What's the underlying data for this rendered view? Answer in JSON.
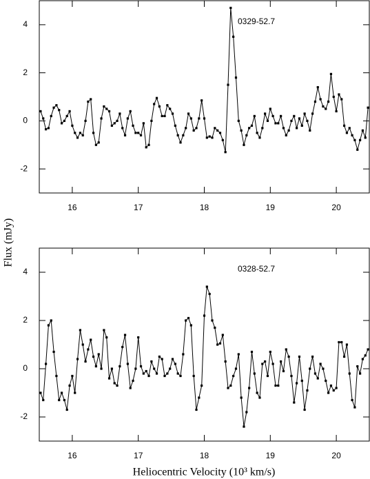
{
  "chart_data": [
    {
      "type": "line",
      "annotation": "0329-52.7",
      "ylabel": "Flux (mJy)",
      "xlim": [
        15.5,
        20.5
      ],
      "xticks": [
        16,
        17,
        18,
        19,
        20
      ],
      "ylim": [
        -3,
        5
      ],
      "yticks": [
        -2,
        0,
        2,
        4
      ],
      "color": "#000000",
      "x": [
        15.52,
        15.56,
        15.6,
        15.64,
        15.68,
        15.72,
        15.76,
        15.8,
        15.84,
        15.88,
        15.92,
        15.96,
        16,
        16.04,
        16.08,
        16.12,
        16.16,
        16.2,
        16.24,
        16.28,
        16.32,
        16.36,
        16.4,
        16.44,
        16.48,
        16.52,
        16.56,
        16.6,
        16.64,
        16.68,
        16.72,
        16.76,
        16.8,
        16.84,
        16.88,
        16.92,
        16.96,
        17,
        17.04,
        17.08,
        17.12,
        17.16,
        17.2,
        17.24,
        17.28,
        17.32,
        17.36,
        17.4,
        17.44,
        17.48,
        17.52,
        17.56,
        17.6,
        17.64,
        17.68,
        17.72,
        17.76,
        17.8,
        17.84,
        17.88,
        17.92,
        17.96,
        18,
        18.04,
        18.08,
        18.12,
        18.16,
        18.2,
        18.24,
        18.28,
        18.32,
        18.36,
        18.4,
        18.44,
        18.48,
        18.52,
        18.56,
        18.6,
        18.64,
        18.68,
        18.72,
        18.76,
        18.8,
        18.84,
        18.88,
        18.92,
        18.96,
        19,
        19.04,
        19.08,
        19.12,
        19.16,
        19.2,
        19.24,
        19.28,
        19.32,
        19.36,
        19.4,
        19.44,
        19.48,
        19.52,
        19.56,
        19.6,
        19.64,
        19.68,
        19.72,
        19.76,
        19.8,
        19.84,
        19.88,
        19.92,
        19.96,
        20,
        20.04,
        20.08,
        20.12,
        20.16,
        20.2,
        20.24,
        20.28,
        20.32,
        20.36,
        20.4,
        20.44,
        20.48
      ],
      "values": [
        0.4,
        0.1,
        -0.35,
        -0.3,
        0.2,
        0.55,
        0.65,
        0.45,
        -0.1,
        0.0,
        0.2,
        0.4,
        -0.2,
        -0.5,
        -0.7,
        -0.5,
        -0.6,
        0.0,
        0.8,
        0.9,
        -0.5,
        -1.0,
        -0.9,
        0.1,
        0.6,
        0.5,
        0.4,
        -0.2,
        -0.1,
        0.0,
        0.3,
        -0.3,
        -0.6,
        0.1,
        0.4,
        -0.2,
        -0.5,
        -0.5,
        -0.6,
        -0.1,
        -1.1,
        -1.0,
        0.0,
        0.7,
        0.95,
        0.6,
        0.2,
        0.2,
        0.65,
        0.5,
        0.3,
        -0.2,
        -0.6,
        -0.9,
        -0.6,
        -0.3,
        0.3,
        0.1,
        -0.4,
        -0.3,
        0.1,
        0.85,
        0.1,
        -0.7,
        -0.65,
        -0.7,
        -0.3,
        -0.4,
        -0.5,
        -0.8,
        -1.3,
        1.5,
        4.7,
        3.5,
        1.8,
        0.0,
        -0.4,
        -1.0,
        -0.6,
        -0.3,
        -0.2,
        0.2,
        -0.5,
        -0.7,
        -0.3,
        0.3,
        0.0,
        0.5,
        0.2,
        -0.1,
        -0.1,
        0.2,
        -0.3,
        -0.6,
        -0.4,
        0.0,
        0.2,
        -0.3,
        0.1,
        -0.2,
        0.3,
        0.0,
        -0.4,
        0.3,
        0.8,
        1.4,
        0.9,
        0.6,
        0.5,
        0.8,
        1.95,
        1.0,
        0.4,
        1.1,
        0.9,
        -0.2,
        -0.5,
        -0.3,
        -0.6,
        -0.8,
        -1.2,
        -0.8,
        -0.4,
        -0.7,
        0.55
      ]
    },
    {
      "type": "line",
      "annotation": "0328-52.7",
      "xlabel": "Heliocentric Velocity (10³ km/s)",
      "xlim": [
        15.5,
        20.5
      ],
      "xticks": [
        16,
        17,
        18,
        19,
        20
      ],
      "ylim": [
        -3,
        5
      ],
      "yticks": [
        -2,
        0,
        2,
        4
      ],
      "color": "#000000",
      "x": [
        15.52,
        15.56,
        15.6,
        15.64,
        15.68,
        15.72,
        15.76,
        15.8,
        15.84,
        15.88,
        15.92,
        15.96,
        16,
        16.04,
        16.08,
        16.12,
        16.16,
        16.2,
        16.24,
        16.28,
        16.32,
        16.36,
        16.4,
        16.44,
        16.48,
        16.52,
        16.56,
        16.6,
        16.64,
        16.68,
        16.72,
        16.76,
        16.8,
        16.84,
        16.88,
        16.92,
        16.96,
        17,
        17.04,
        17.08,
        17.12,
        17.16,
        17.2,
        17.24,
        17.28,
        17.32,
        17.36,
        17.4,
        17.44,
        17.48,
        17.52,
        17.56,
        17.6,
        17.64,
        17.68,
        17.72,
        17.76,
        17.8,
        17.84,
        17.88,
        17.92,
        17.96,
        18,
        18.04,
        18.08,
        18.12,
        18.16,
        18.2,
        18.24,
        18.28,
        18.32,
        18.36,
        18.4,
        18.44,
        18.48,
        18.52,
        18.56,
        18.6,
        18.64,
        18.68,
        18.72,
        18.76,
        18.8,
        18.84,
        18.88,
        18.92,
        18.96,
        19,
        19.04,
        19.08,
        19.12,
        19.16,
        19.2,
        19.24,
        19.28,
        19.32,
        19.36,
        19.4,
        19.44,
        19.48,
        19.52,
        19.56,
        19.6,
        19.64,
        19.68,
        19.72,
        19.76,
        19.8,
        19.84,
        19.88,
        19.92,
        19.96,
        20,
        20.04,
        20.08,
        20.12,
        20.16,
        20.2,
        20.24,
        20.28,
        20.32,
        20.36,
        20.4,
        20.44,
        20.48
      ],
      "values": [
        -1.0,
        -1.3,
        0.2,
        1.8,
        2.0,
        0.7,
        -0.3,
        -1.3,
        -1.0,
        -1.3,
        -1.7,
        -0.7,
        -0.3,
        -1.0,
        0.4,
        1.6,
        1.0,
        0.3,
        0.8,
        1.2,
        0.5,
        0.1,
        0.6,
        0.0,
        1.6,
        1.3,
        -0.4,
        0.0,
        -0.6,
        -0.7,
        0.1,
        0.9,
        1.4,
        0.2,
        -0.8,
        -0.5,
        0.0,
        1.3,
        0.1,
        -0.2,
        -0.1,
        -0.3,
        0.3,
        0.0,
        -0.2,
        0.5,
        0.4,
        -0.3,
        -0.2,
        0.0,
        0.4,
        0.2,
        -0.2,
        -0.3,
        0.6,
        2.0,
        2.1,
        1.8,
        -0.3,
        -1.7,
        -1.2,
        -0.7,
        2.2,
        3.4,
        3.1,
        2.0,
        1.7,
        1.0,
        1.05,
        1.4,
        0.3,
        -0.8,
        -0.7,
        -0.3,
        0.0,
        0.6,
        -1.2,
        -2.4,
        -1.8,
        -0.8,
        0.7,
        -0.2,
        -1.0,
        -1.2,
        0.2,
        0.3,
        -0.3,
        0.7,
        0.2,
        -0.7,
        -0.7,
        0.3,
        -0.1,
        0.8,
        0.5,
        -0.3,
        -1.4,
        -0.6,
        0.5,
        -0.5,
        -1.7,
        -0.9,
        0.0,
        0.5,
        -0.2,
        -0.4,
        0.2,
        0.0,
        -0.5,
        -1.0,
        -0.7,
        -0.9,
        -0.8,
        1.1,
        1.1,
        0.5,
        1.0,
        -0.2,
        -1.3,
        -1.6,
        0.1,
        -0.2,
        0.4,
        0.55,
        0.8
      ]
    }
  ]
}
